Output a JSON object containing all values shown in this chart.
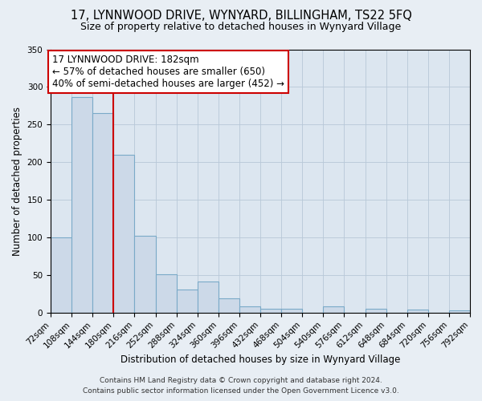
{
  "title": "17, LYNNWOOD DRIVE, WYNYARD, BILLINGHAM, TS22 5FQ",
  "subtitle": "Size of property relative to detached houses in Wynyard Village",
  "xlabel": "Distribution of detached houses by size in Wynyard Village",
  "ylabel": "Number of detached properties",
  "footer_lines": [
    "Contains HM Land Registry data © Crown copyright and database right 2024.",
    "Contains public sector information licensed under the Open Government Licence v3.0."
  ],
  "bin_edges": [
    72,
    108,
    144,
    180,
    216,
    252,
    288,
    324,
    360,
    396,
    432,
    468,
    504,
    540,
    576,
    612,
    648,
    684,
    720,
    756,
    792
  ],
  "bar_heights": [
    100,
    287,
    265,
    210,
    102,
    51,
    31,
    41,
    19,
    8,
    5,
    5,
    0,
    8,
    0,
    5,
    0,
    4,
    0,
    3
  ],
  "bar_color": "#ccd9e8",
  "bar_edge_color": "#7aaac8",
  "vline_x": 180,
  "vline_color": "#cc0000",
  "annotation_text_line1": "17 LYNNWOOD DRIVE: 182sqm",
  "annotation_text_line2": "← 57% of detached houses are smaller (650)",
  "annotation_text_line3": "40% of semi-detached houses are larger (452) →",
  "ylim": [
    0,
    350
  ],
  "yticks": [
    0,
    50,
    100,
    150,
    200,
    250,
    300,
    350
  ],
  "bg_color": "#e8eef4",
  "plot_bg_color": "#dce6f0",
  "grid_color": "#b8c8d8",
  "title_fontsize": 10.5,
  "subtitle_fontsize": 9,
  "axis_label_fontsize": 8.5,
  "tick_fontsize": 7.5,
  "annotation_fontsize": 8.5,
  "footer_fontsize": 6.5
}
